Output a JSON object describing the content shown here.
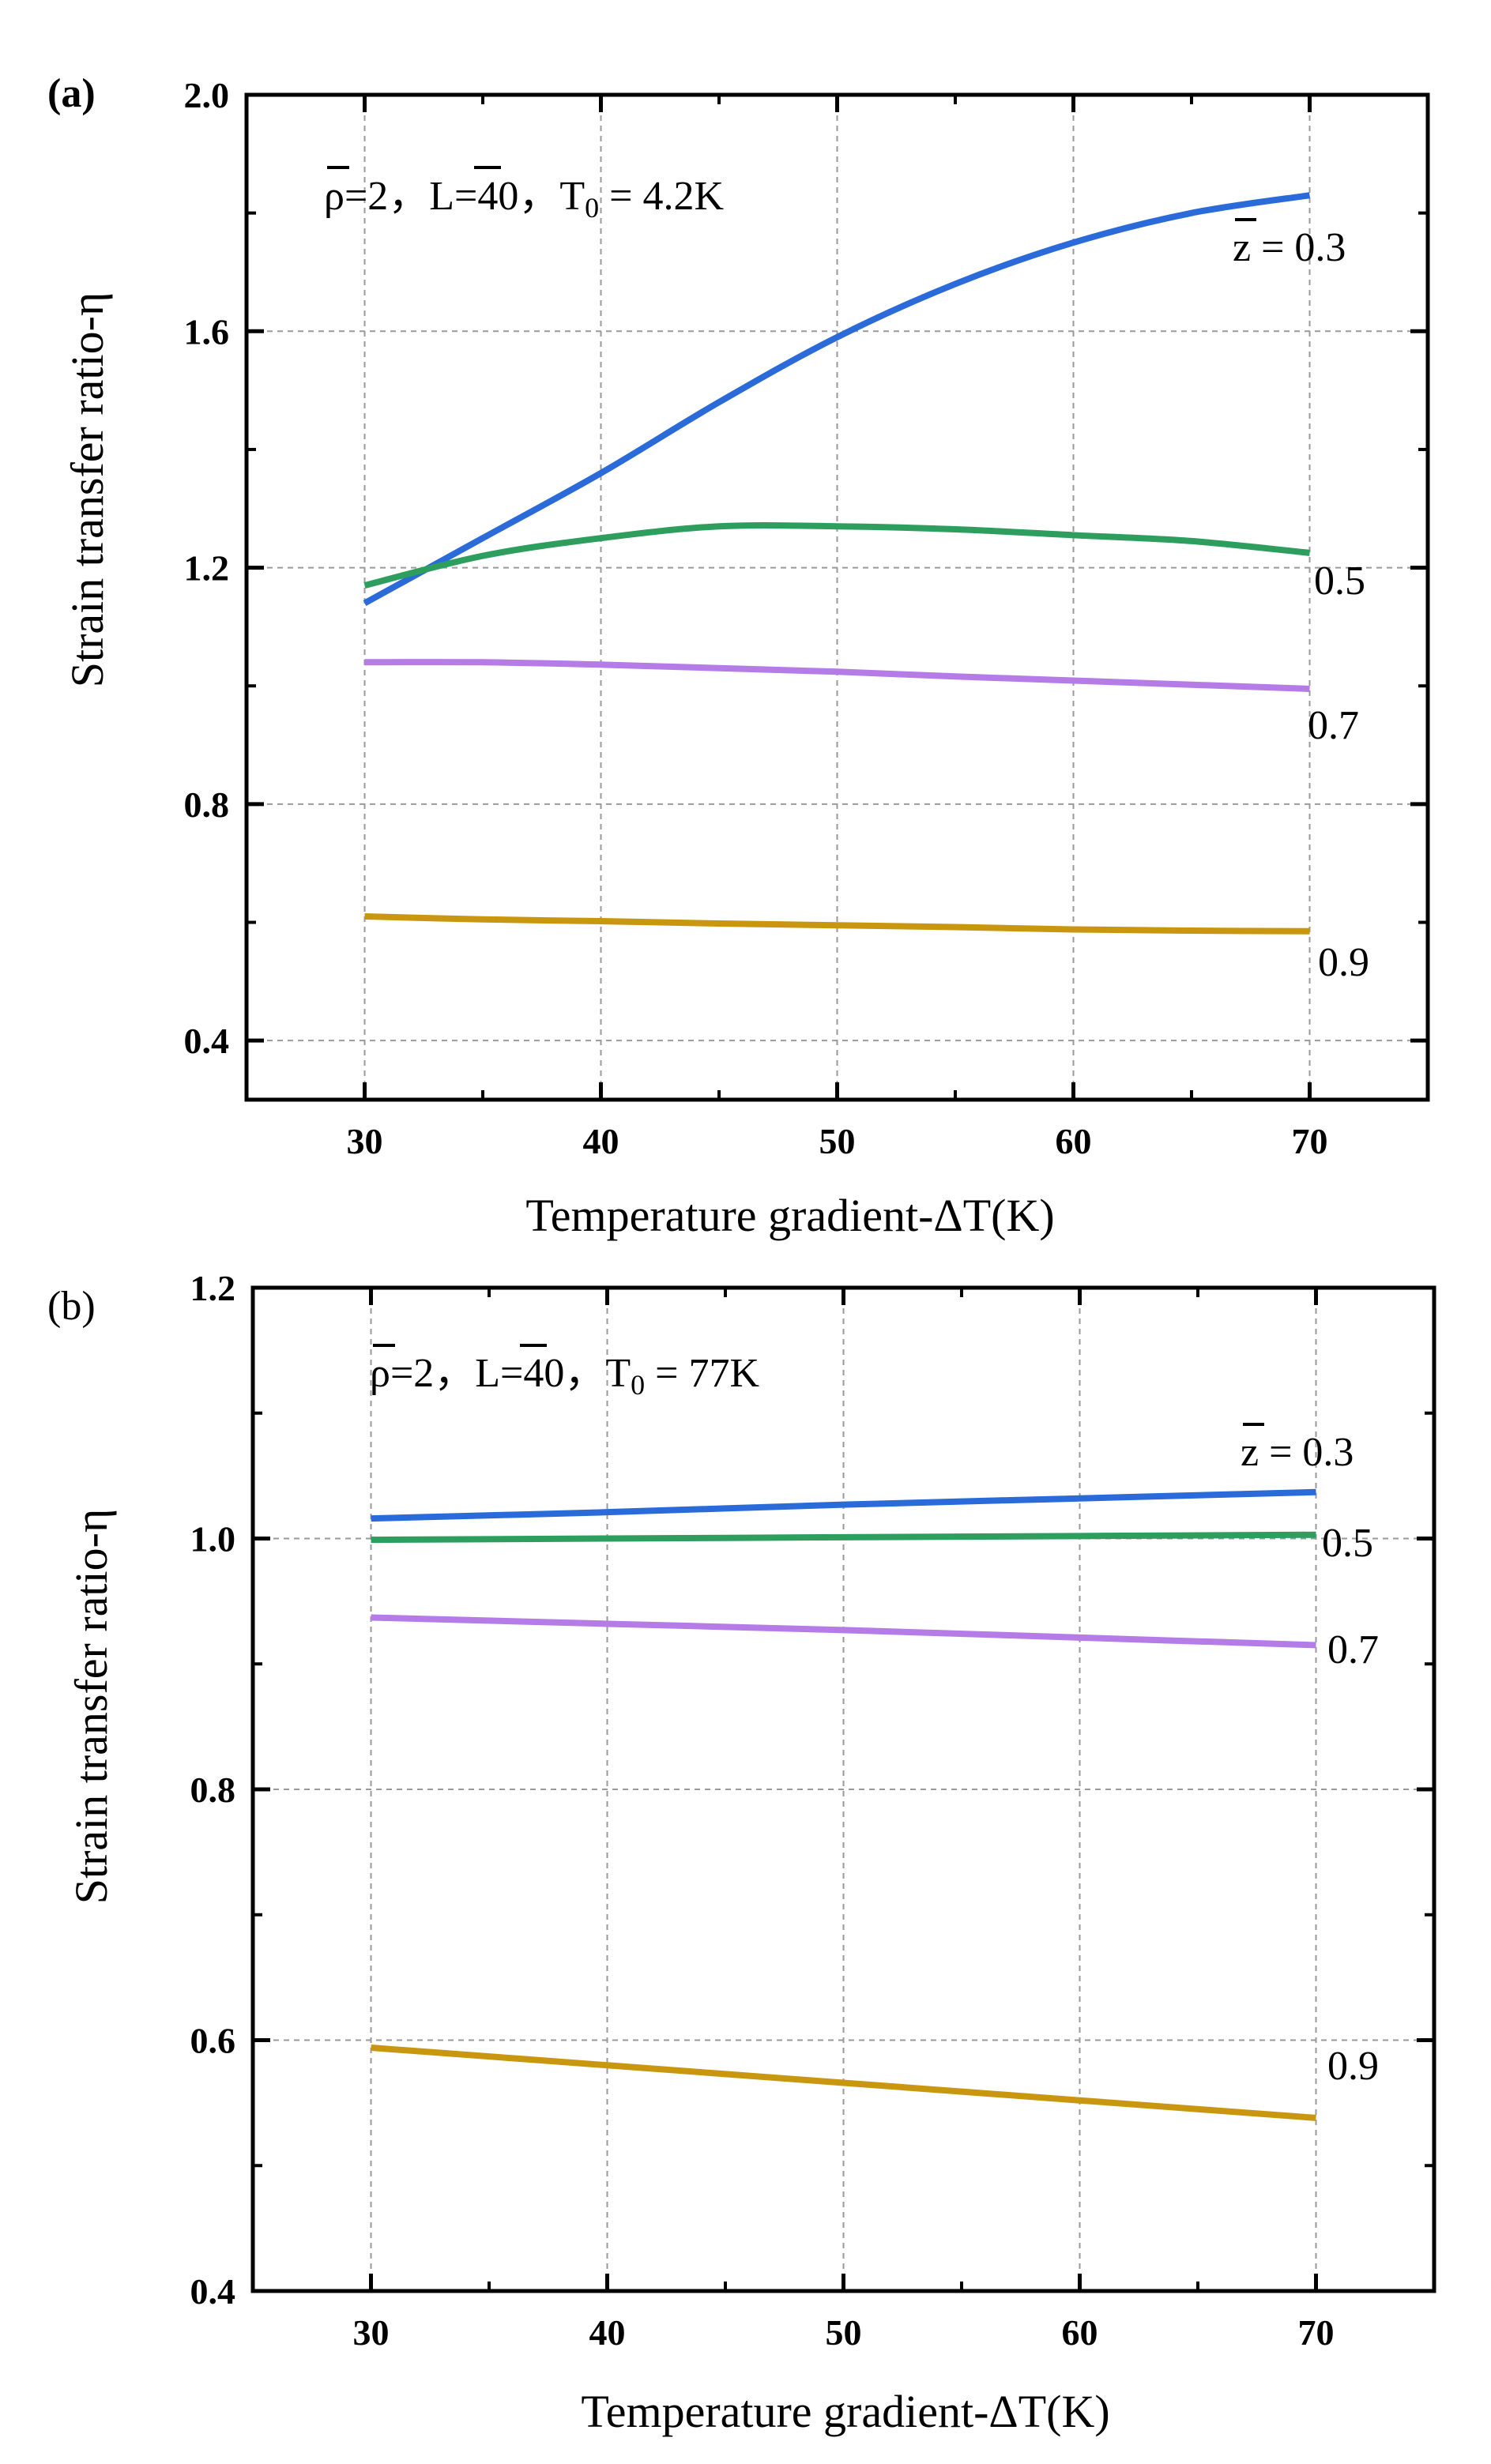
{
  "chart_data": [
    {
      "panel_id": "a",
      "panel_label": "(a)",
      "type": "line",
      "xlabel": "Temperature gradient-ΔT(K)",
      "ylabel": "Strain transfer ratio-η",
      "xlim": [
        25,
        75
      ],
      "ylim": [
        0.3,
        2.0
      ],
      "xticks": [
        "30",
        "40",
        "50",
        "60",
        "70"
      ],
      "xtick_values": [
        30,
        40,
        50,
        60,
        70
      ],
      "yticks": [
        "0.4",
        "0.8",
        "1.2",
        "1.6",
        "2.0"
      ],
      "ytick_values": [
        0.4,
        0.8,
        1.2,
        1.6,
        2.0
      ],
      "grid": true,
      "annotation": {
        "rho": "ρ",
        "rho_val": "=2，",
        "L": "L",
        "L_val": "=40，",
        "T": "T",
        "T_sub": "0",
        "T_val": " = 4.2K"
      },
      "x": [
        30,
        35,
        40,
        45,
        50,
        55,
        60,
        65,
        70
      ],
      "series": [
        {
          "name": "0.3",
          "label_prefix": "z",
          "label_eq": " = 0.3",
          "color": "#2a6bd9",
          "values": [
            1.14,
            1.25,
            1.36,
            1.48,
            1.59,
            1.68,
            1.75,
            1.8,
            1.83
          ]
        },
        {
          "name": "0.5",
          "color": "#2e9e5e",
          "values": [
            1.17,
            1.22,
            1.25,
            1.27,
            1.27,
            1.265,
            1.255,
            1.245,
            1.225
          ]
        },
        {
          "name": "0.7",
          "color": "#b57be6",
          "values": [
            1.04,
            1.04,
            1.036,
            1.03,
            1.024,
            1.016,
            1.009,
            1.002,
            0.995
          ]
        },
        {
          "name": "0.9",
          "color": "#c9970f",
          "values": [
            0.61,
            0.605,
            0.602,
            0.598,
            0.595,
            0.592,
            0.588,
            0.586,
            0.585
          ]
        }
      ]
    },
    {
      "panel_id": "b",
      "panel_label": "(b)",
      "type": "line",
      "xlabel": "Temperature gradient-ΔT(K)",
      "ylabel": "Strain transfer ratio-η",
      "xlim": [
        25,
        75
      ],
      "ylim": [
        0.4,
        1.2
      ],
      "xticks": [
        "30",
        "40",
        "50",
        "60",
        "70"
      ],
      "xtick_values": [
        30,
        40,
        50,
        60,
        70
      ],
      "yticks": [
        "0.4",
        "0.6",
        "0.8",
        "1.0",
        "1.2"
      ],
      "ytick_values": [
        0.4,
        0.6,
        0.8,
        1.0,
        1.2
      ],
      "grid": true,
      "annotation": {
        "rho": "ρ",
        "rho_val": "=2，",
        "L": "L",
        "L_val": "=40，",
        "T": "T",
        "T_sub": "0",
        "T_val": " = 77K"
      },
      "x": [
        30,
        40,
        50,
        60,
        70
      ],
      "series": [
        {
          "name": "0.3",
          "label_prefix": "z",
          "label_eq": " = 0.3",
          "color": "#2a6bd9",
          "values": [
            1.016,
            1.021,
            1.027,
            1.032,
            1.037
          ]
        },
        {
          "name": "0.5",
          "color": "#2e9e5e",
          "values": [
            0.999,
            1.0,
            1.001,
            1.002,
            1.003
          ]
        },
        {
          "name": "0.7",
          "color": "#b57be6",
          "values": [
            0.937,
            0.932,
            0.927,
            0.921,
            0.915
          ]
        },
        {
          "name": "0.9",
          "color": "#c9970f",
          "values": [
            0.594,
            0.58,
            0.566,
            0.552,
            0.538
          ]
        }
      ]
    }
  ]
}
